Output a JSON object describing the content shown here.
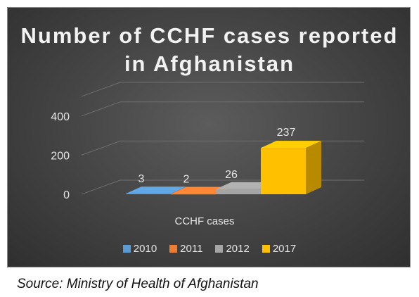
{
  "chart_data": {
    "type": "bar",
    "title": "Number of CCHF cases reported in Afghanistan",
    "categories": [
      "CCHF cases"
    ],
    "series": [
      {
        "name": "2010",
        "values": [
          3
        ],
        "color": "#5b9bd5"
      },
      {
        "name": "2011",
        "values": [
          2
        ],
        "color": "#ed7d31"
      },
      {
        "name": "2012",
        "values": [
          26
        ],
        "color": "#a5a5a5"
      },
      {
        "name": "2017",
        "values": [
          237
        ],
        "color": "#ffc000"
      }
    ],
    "yticks": [
      "0",
      "200",
      "400"
    ],
    "ylim": [
      0,
      400
    ],
    "grid": true,
    "legend": "bottom",
    "style": "3d-column"
  },
  "source": "Source: Ministry of Health of Afghanistan"
}
